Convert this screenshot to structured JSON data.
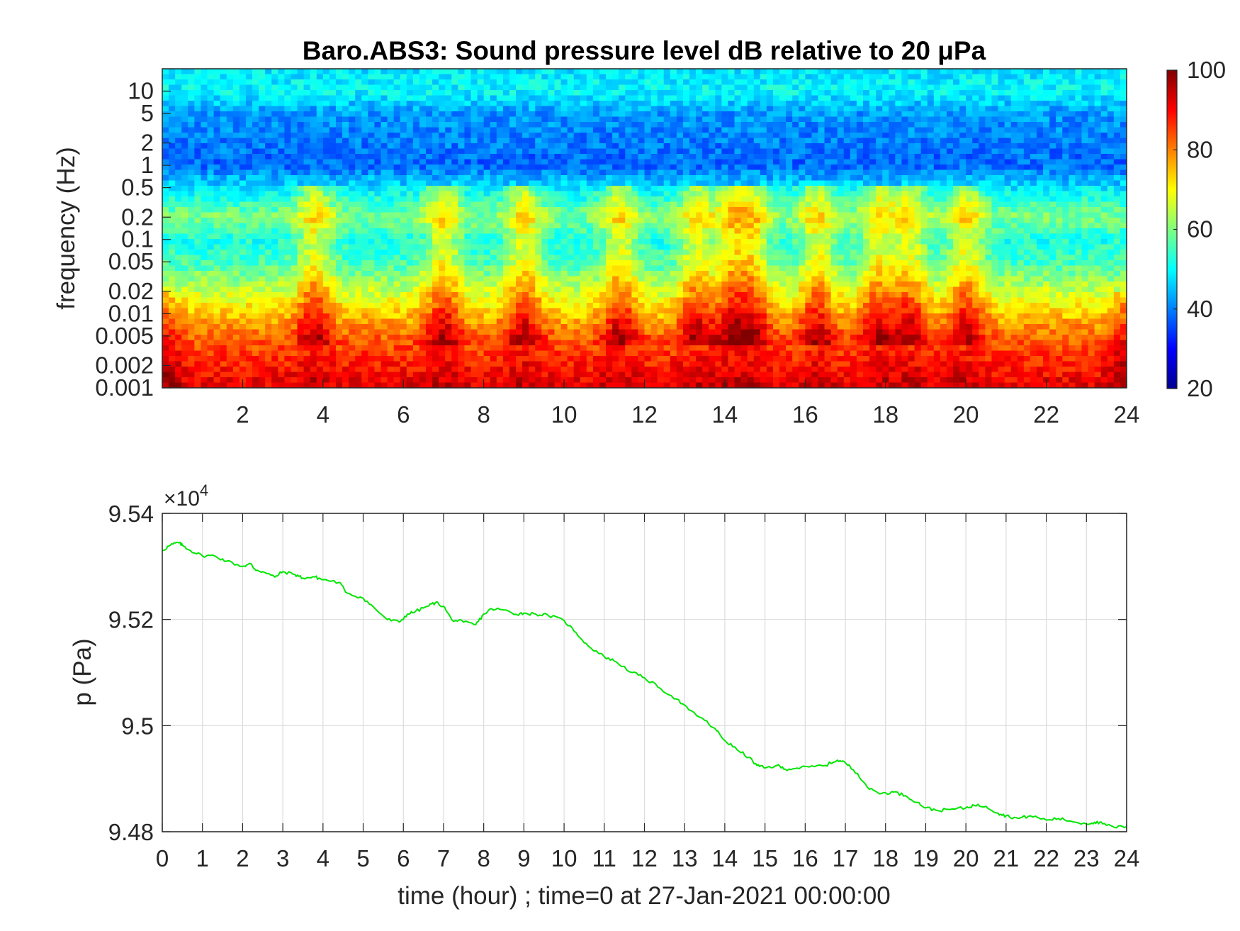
{
  "chart_data": [
    {
      "type": "heatmap",
      "title": "Baro.ABS3: Sound pressure level dB relative to 20 ",
      "title_unit": "μPa",
      "ylabel": "frequency (Hz)",
      "xlabel": "",
      "y_scale": "log",
      "xlim": [
        0,
        24
      ],
      "ylim": [
        0.001,
        20
      ],
      "x_ticks": [
        2,
        4,
        6,
        8,
        10,
        12,
        14,
        16,
        18,
        20,
        22,
        24
      ],
      "x_tick_labels": [
        "2",
        "4",
        "6",
        "8",
        "10",
        "12",
        "14",
        "16",
        "18",
        "20",
        "22",
        "24"
      ],
      "y_ticks": [
        0.001,
        0.002,
        0.005,
        0.01,
        0.02,
        0.05,
        0.1,
        0.2,
        0.5,
        1,
        2,
        5,
        10
      ],
      "y_tick_labels": [
        "0.001",
        "0.002",
        "0.005",
        "0.01",
        "0.02",
        "0.05",
        "0.1",
        "0.2",
        "0.5",
        "1",
        "2",
        "5",
        "10"
      ],
      "colorbar": {
        "colormap": "jet",
        "range": [
          20,
          100
        ],
        "ticks": [
          20,
          40,
          60,
          80,
          100
        ],
        "tick_labels": [
          "20",
          "40",
          "60",
          "80",
          "100"
        ]
      },
      "level_profile_db": [
        {
          "freq": 20,
          "db": 48
        },
        {
          "freq": 10,
          "db": 50
        },
        {
          "freq": 5,
          "db": 42
        },
        {
          "freq": 1,
          "db": 38
        },
        {
          "freq": 0.5,
          "db": 48
        },
        {
          "freq": 0.2,
          "db": 60
        },
        {
          "freq": 0.1,
          "db": 52
        },
        {
          "freq": 0.05,
          "db": 55
        },
        {
          "freq": 0.02,
          "db": 66
        },
        {
          "freq": 0.01,
          "db": 74
        },
        {
          "freq": 0.005,
          "db": 82
        },
        {
          "freq": 0.002,
          "db": 88
        },
        {
          "freq": 0.001,
          "db": 92
        }
      ],
      "activity_peaks_hour": [
        3.8,
        7.0,
        9.0,
        11.4,
        13.3,
        14.2,
        14.7,
        16.3,
        17.8,
        18.6,
        20.0
      ]
    },
    {
      "type": "line",
      "title": "",
      "xlabel": "time (hour) ; time=0 at 27-Jan-2021 00:00:00",
      "ylabel": "p (Pa)",
      "xlim": [
        0,
        24
      ],
      "ylim": [
        94800,
        95400
      ],
      "y_exponent_label": "×10",
      "y_exponent": "4",
      "grid": true,
      "x_ticks": [
        0,
        1,
        2,
        3,
        4,
        5,
        6,
        7,
        8,
        9,
        10,
        11,
        12,
        13,
        14,
        15,
        16,
        17,
        18,
        19,
        20,
        21,
        22,
        23,
        24
      ],
      "x_tick_labels": [
        "0",
        "1",
        "2",
        "3",
        "4",
        "5",
        "6",
        "7",
        "8",
        "9",
        "10",
        "11",
        "12",
        "13",
        "14",
        "15",
        "16",
        "17",
        "18",
        "19",
        "20",
        "21",
        "22",
        "23",
        "24"
      ],
      "y_ticks": [
        94800,
        95000,
        95200,
        95400
      ],
      "y_tick_labels": [
        "9.48",
        "9.5",
        "9.52",
        "9.54"
      ],
      "series_color": "#00e600",
      "series": [
        {
          "x": [
            0,
            0.2,
            0.4,
            0.5,
            0.7,
            1.0,
            1.3,
            1.6,
            2.0,
            2.2,
            2.3,
            2.5,
            2.8,
            3.0,
            3.3,
            3.5,
            3.8,
            4.0,
            4.4,
            4.6,
            5.0,
            5.3,
            5.6,
            5.9,
            6.1,
            6.3,
            6.6,
            6.8,
            7.0,
            7.2,
            7.5,
            7.8,
            8.0,
            8.2,
            8.5,
            8.8,
            9.0,
            9.3,
            9.6,
            10.0,
            10.3,
            10.6,
            11.0,
            11.3,
            11.7,
            12.0,
            12.4,
            12.8,
            13.1,
            13.5,
            13.8,
            14.0,
            14.3,
            14.6,
            14.8,
            15.0,
            15.3,
            15.5,
            15.8,
            16.1,
            16.5,
            16.8,
            17.0,
            17.3,
            17.6,
            17.9,
            18.2,
            18.5,
            18.8,
            19.0,
            19.3,
            19.6,
            20.0,
            20.2,
            20.5,
            20.8,
            21.0,
            21.3,
            21.6,
            22.0,
            22.3,
            22.6,
            23.0,
            23.2,
            23.4,
            23.7,
            24.0
          ],
          "y": [
            95330,
            95340,
            95345,
            95340,
            95330,
            95320,
            95320,
            95310,
            95300,
            95305,
            95295,
            95290,
            95280,
            95290,
            95285,
            95278,
            95280,
            95275,
            95270,
            95250,
            95240,
            95220,
            95200,
            95195,
            95210,
            95215,
            95225,
            95232,
            95225,
            95200,
            95195,
            95190,
            95210,
            95220,
            95218,
            95210,
            95212,
            95210,
            95208,
            95198,
            95175,
            95150,
            95130,
            95120,
            95100,
            95090,
            95070,
            95050,
            95030,
            95010,
            94990,
            94972,
            94955,
            94940,
            94925,
            94920,
            94925,
            94918,
            94920,
            94922,
            94925,
            94935,
            94930,
            94910,
            94880,
            94872,
            94875,
            94868,
            94855,
            94845,
            94840,
            94842,
            94845,
            94850,
            94848,
            94835,
            94830,
            94825,
            94830,
            94822,
            94825,
            94820,
            94815,
            94818,
            94815,
            94808,
            94810
          ]
        }
      ]
    }
  ]
}
